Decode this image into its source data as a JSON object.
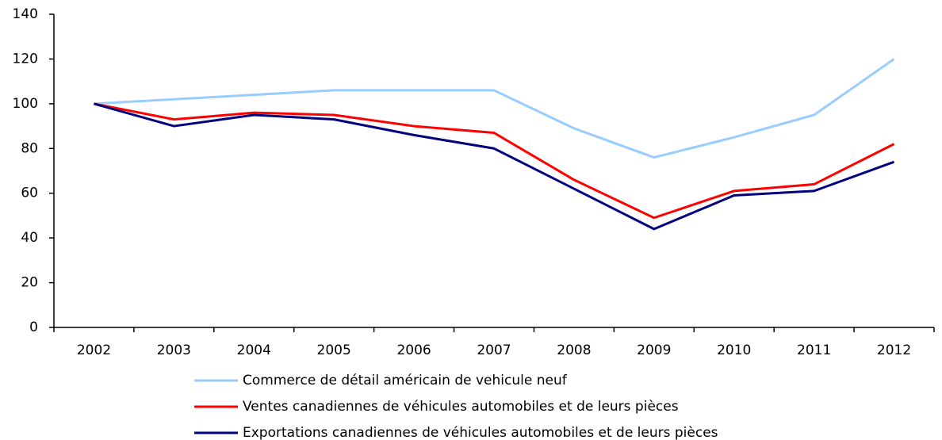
{
  "chart_data": {
    "type": "line",
    "categories": [
      "2002",
      "2003",
      "2004",
      "2005",
      "2006",
      "2007",
      "2008",
      "2009",
      "2010",
      "2011",
      "2012"
    ],
    "series": [
      {
        "name": "Commerce de détail américain de vehicule neuf",
        "color": "#99ccff",
        "values": [
          100,
          102,
          104,
          106,
          106,
          106,
          89,
          76,
          85,
          95,
          120
        ]
      },
      {
        "name": "Ventes canadiennes de véhicules automobiles et de leurs pièces",
        "color": "#ff0000",
        "values": [
          100,
          93,
          96,
          95,
          90,
          87,
          66,
          49,
          61,
          64,
          82
        ]
      },
      {
        "name": "Exportations canadiennes de véhicules automobiles et de leurs pièces",
        "color": "#000080",
        "values": [
          100,
          90,
          95,
          93,
          86,
          80,
          62,
          44,
          59,
          61,
          74
        ]
      }
    ],
    "ylim": [
      0,
      140
    ],
    "yticks": [
      0,
      20,
      40,
      60,
      80,
      100,
      120,
      140
    ],
    "grid": false,
    "legend": "bottom"
  }
}
